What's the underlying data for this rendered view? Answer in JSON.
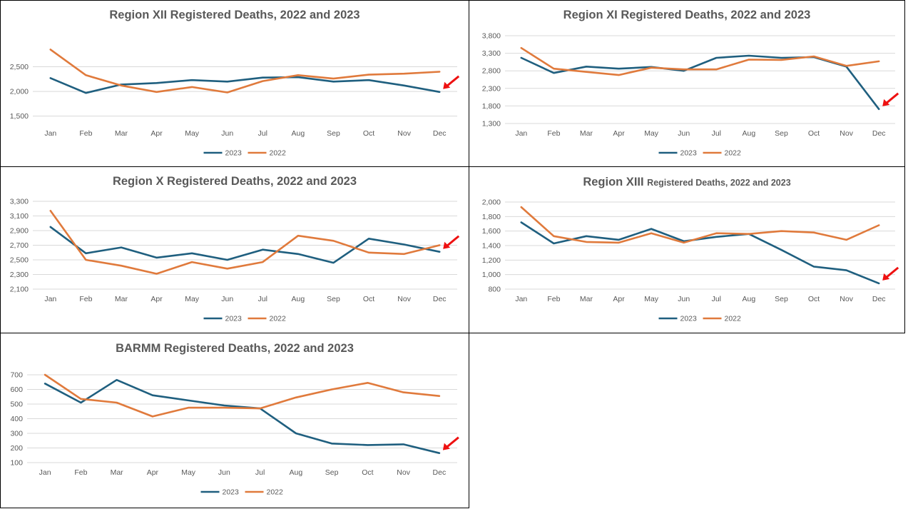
{
  "colors": {
    "s2023": "#1f5f7f",
    "s2022": "#e07a3c",
    "grid": "#d9d9d9",
    "arrow": "#ee1111",
    "text": "#595959"
  },
  "chart_data": [
    {
      "type": "line",
      "title_bold": "Region XII  Registered Deaths, 2022 and 2023",
      "title_small": "",
      "categories": [
        "Jan",
        "Feb",
        "Mar",
        "Apr",
        "May",
        "Jun",
        "Jul",
        "Aug",
        "Sep",
        "Oct",
        "Nov",
        "Dec"
      ],
      "yticks": [
        1500,
        2000,
        2500
      ],
      "ytick_labels": [
        "1,500",
        "2,000",
        "2,500"
      ],
      "ylim": [
        1350,
        3000
      ],
      "grid": true,
      "legend": "bottom",
      "series": [
        {
          "name": "2023",
          "values": [
            2270,
            1970,
            2140,
            2170,
            2230,
            2200,
            2280,
            2290,
            2200,
            2230,
            2120,
            1990
          ]
        },
        {
          "name": "2022",
          "values": [
            2850,
            2330,
            2120,
            1990,
            2090,
            1980,
            2210,
            2330,
            2260,
            2340,
            2360,
            2400
          ]
        }
      ],
      "annotation": "arrow pointing to 2023 December value"
    },
    {
      "type": "line",
      "title_bold": "Region XI  Registered Deaths, 2022 and 2023",
      "title_small": "",
      "categories": [
        "Jan",
        "Feb",
        "Mar",
        "Apr",
        "May",
        "Jun",
        "Jul",
        "Aug",
        "Sep",
        "Oct",
        "Nov",
        "Dec"
      ],
      "yticks": [
        1300,
        1800,
        2300,
        2800,
        3300,
        3800
      ],
      "ytick_labels": [
        "1,300",
        "1,800",
        "2,300",
        "2,800",
        "3,300",
        "3,800"
      ],
      "ylim": [
        1300,
        3800
      ],
      "grid": true,
      "legend": "bottom",
      "series": [
        {
          "name": "2023",
          "values": [
            3170,
            2740,
            2920,
            2860,
            2910,
            2800,
            3170,
            3230,
            3170,
            3190,
            2920,
            1710
          ]
        },
        {
          "name": "2022",
          "values": [
            3450,
            2860,
            2770,
            2680,
            2890,
            2840,
            2840,
            3120,
            3110,
            3210,
            2940,
            3070
          ]
        }
      ],
      "annotation": "arrow pointing to 2023 December value"
    },
    {
      "type": "line",
      "title_bold": "Region X  Registered Deaths, 2022 and 2023",
      "title_small": "",
      "categories": [
        "Jan",
        "Feb",
        "Mar",
        "Apr",
        "May",
        "Jun",
        "Jul",
        "Aug",
        "Sep",
        "Oct",
        "Nov",
        "Dec"
      ],
      "yticks": [
        2100,
        2300,
        2500,
        2700,
        2900,
        3100,
        3300
      ],
      "ytick_labels": [
        "2,100",
        "2,300",
        "2,500",
        "2,700",
        "2,900",
        "3,100",
        "3,300"
      ],
      "ylim": [
        2100,
        3300
      ],
      "grid": true,
      "legend": "bottom",
      "series": [
        {
          "name": "2023",
          "values": [
            2950,
            2590,
            2670,
            2530,
            2590,
            2500,
            2640,
            2580,
            2460,
            2790,
            2710,
            2610
          ]
        },
        {
          "name": "2022",
          "values": [
            3170,
            2500,
            2420,
            2310,
            2470,
            2380,
            2470,
            2830,
            2760,
            2600,
            2580,
            2700
          ]
        }
      ],
      "annotation": "arrow pointing to 2023 December value"
    },
    {
      "type": "line",
      "title_bold": "Region XIII",
      "title_small": "Registered Deaths, 2022 and 2023",
      "categories": [
        "Jan",
        "Feb",
        "Mar",
        "Apr",
        "May",
        "Jun",
        "Jul",
        "Aug",
        "Sep",
        "Oct",
        "Nov",
        "Dec"
      ],
      "yticks": [
        800,
        1000,
        1200,
        1400,
        1600,
        1800,
        2000
      ],
      "ytick_labels": [
        "800",
        "1,000",
        "1,200",
        "1,400",
        "1,600",
        "1,800",
        "2,000"
      ],
      "ylim": [
        800,
        2000
      ],
      "grid": true,
      "legend": "bottom",
      "series": [
        {
          "name": "2023",
          "values": [
            1720,
            1430,
            1530,
            1480,
            1630,
            1460,
            1520,
            1560,
            1340,
            1110,
            1060,
            880
          ]
        },
        {
          "name": "2022",
          "values": [
            1930,
            1530,
            1450,
            1440,
            1570,
            1440,
            1570,
            1560,
            1600,
            1580,
            1480,
            1680
          ]
        }
      ],
      "annotation": "arrow pointing to 2023 December value"
    },
    {
      "type": "line",
      "title_bold": "BARMM  Registered Deaths, 2022 and 2023",
      "title_small": "",
      "categories": [
        "Jan",
        "Feb",
        "Mar",
        "Apr",
        "May",
        "Jun",
        "Jul",
        "Aug",
        "Sep",
        "Oct",
        "Nov",
        "Dec"
      ],
      "yticks": [
        100,
        200,
        300,
        400,
        500,
        600,
        700
      ],
      "ytick_labels": [
        "100",
        "200",
        "300",
        "400",
        "500",
        "600",
        "700"
      ],
      "ylim": [
        100,
        700
      ],
      "grid": true,
      "legend": "bottom",
      "series": [
        {
          "name": "2023",
          "values": [
            640,
            510,
            665,
            560,
            525,
            490,
            470,
            300,
            230,
            220,
            225,
            165
          ]
        },
        {
          "name": "2022",
          "values": [
            700,
            535,
            510,
            415,
            475,
            475,
            470,
            545,
            600,
            645,
            580,
            555
          ]
        }
      ],
      "annotation": "arrow pointing to 2023 December value"
    }
  ]
}
